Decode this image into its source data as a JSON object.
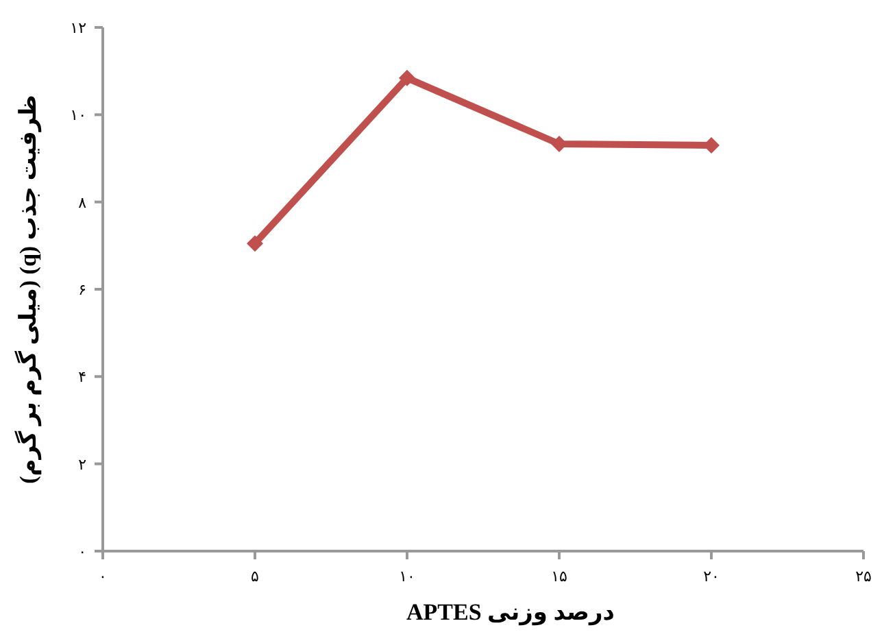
{
  "chart_data": {
    "type": "line",
    "xlabel": "درصد وزنی APTES",
    "ylabel": "ظرفیت جذب (q) (میلی گرم بر گرم)",
    "x": [
      5,
      10,
      15,
      20
    ],
    "series": [
      {
        "color": "#c0504d",
        "values": [
          7.05,
          10.84,
          9.33,
          9.3
        ]
      }
    ],
    "marker": "diamond",
    "line_style": "solid",
    "grid": false,
    "xlim": [
      0,
      25
    ],
    "ylim": [
      0,
      12
    ],
    "xticks": [
      {
        "value": 0,
        "label": "۰"
      },
      {
        "value": 5,
        "label": "۵"
      },
      {
        "value": 10,
        "label": "۱۰"
      },
      {
        "value": 15,
        "label": "۱۵"
      },
      {
        "value": 20,
        "label": "۲۰"
      },
      {
        "value": 25,
        "label": "۲۵"
      }
    ],
    "yticks": [
      {
        "value": 0,
        "label": "۰"
      },
      {
        "value": 2,
        "label": "۲"
      },
      {
        "value": 4,
        "label": "۴"
      },
      {
        "value": 6,
        "label": "۶"
      },
      {
        "value": 8,
        "label": "۸"
      },
      {
        "value": 10,
        "label": "۱۰"
      },
      {
        "value": 12,
        "label": "۱۲"
      }
    ]
  }
}
